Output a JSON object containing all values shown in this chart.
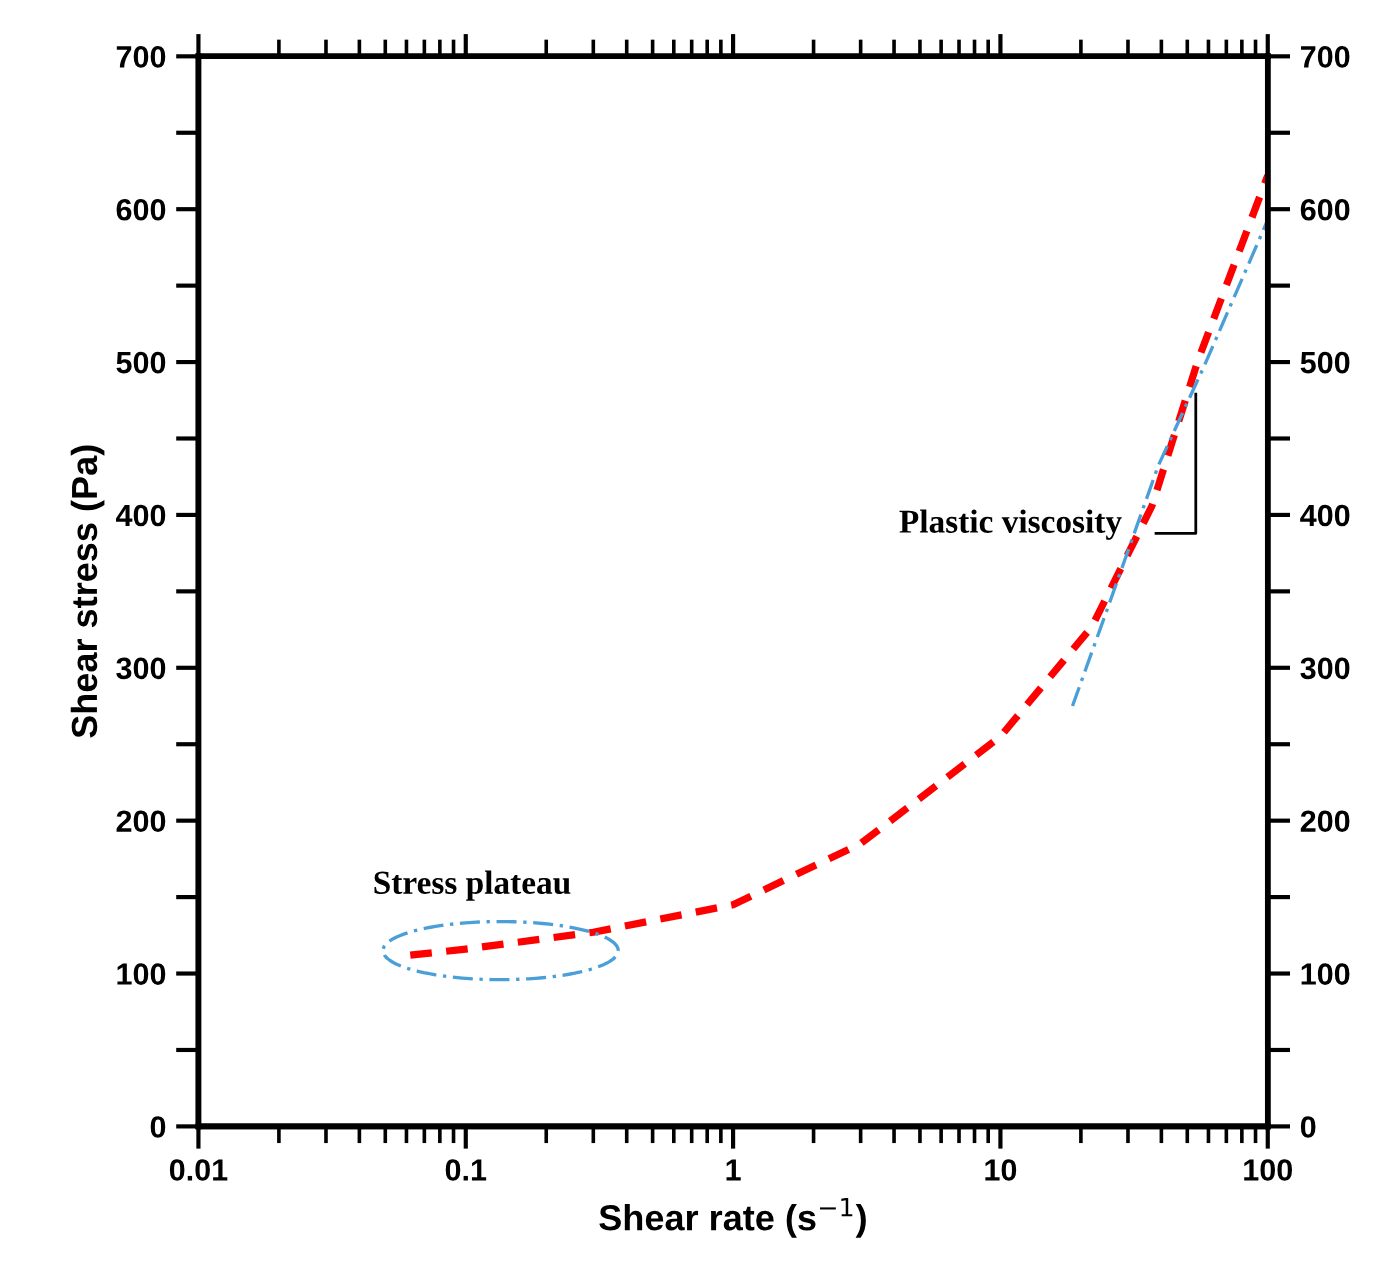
{
  "chart_data": {
    "type": "line",
    "xlabel": "Shear rate (s$^{−1}$)",
    "ylabel": "Shear stress (Pa)",
    "log": "x",
    "xlim": [
      0.01,
      100
    ],
    "xticks": [
      0.01,
      0.1,
      1,
      10,
      100
    ],
    "ylim": [
      0,
      700
    ],
    "yticks": [
      0,
      {
        "value": 50,
        "label": null
      },
      100,
      {
        "value": 150,
        "label": null
      },
      200,
      {
        "value": 250,
        "label": null
      },
      300,
      {
        "value": 350,
        "label": null
      },
      400,
      {
        "value": 450,
        "label": null
      },
      500,
      {
        "value": 550,
        "label": null
      },
      600,
      {
        "value": 650,
        "label": null
      },
      700
    ],
    "y2lim": [
      0,
      700
    ],
    "y2ticks": [
      0,
      {
        "value": 50,
        "label": null
      },
      100,
      {
        "value": 150,
        "label": null
      },
      200,
      {
        "value": 250,
        "label": null
      },
      300,
      {
        "value": 350,
        "label": null
      },
      400,
      {
        "value": 450,
        "label": null
      },
      500,
      {
        "value": 550,
        "label": null
      },
      600,
      {
        "value": 650,
        "label": null
      },
      700
    ],
    "grid": false,
    "marker": "none",
    "series": [
      {
        "color": "#ff0000",
        "line_style": "dashed",
        "x": [
          0.062,
          0.1,
          0.3,
          1,
          3,
          10,
          22,
          36.9,
          54.8,
          100
        ],
        "values": [
          112,
          116,
          127,
          145,
          185,
          255,
          327,
          406,
          501,
          622
        ]
      },
      {
        "color": "#4a9fd8",
        "line_style": "dashdot",
        "x": [
          18.6,
          25.3,
          38.9,
          57.7,
          100
        ],
        "values": [
          275,
          340,
          432,
          497,
          593
        ]
      }
    ],
    "annotations": [
      "Stress plateau",
      {
        "text": "Plastic viscosity",
        "x": 46,
        "y": 450
      }
    ]
  }
}
